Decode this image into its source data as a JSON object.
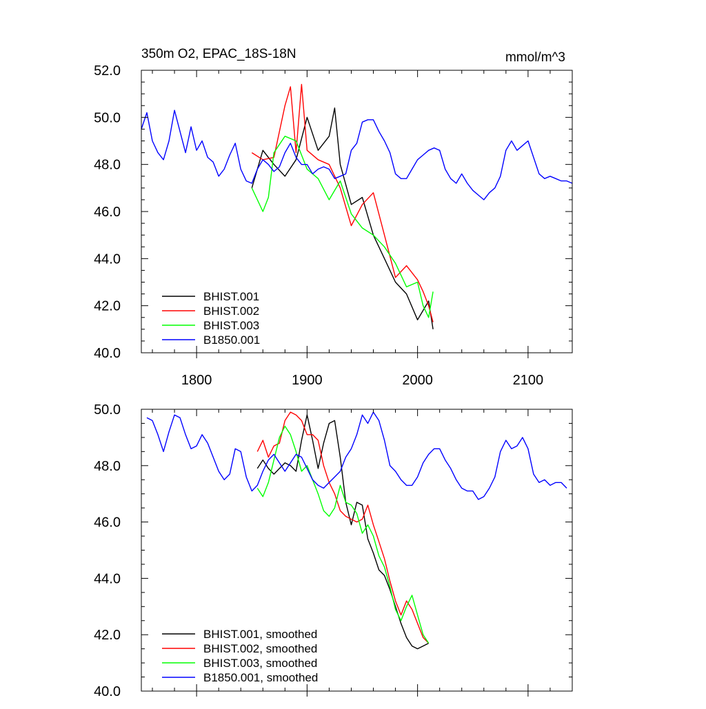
{
  "chart_data": [
    {
      "type": "line",
      "title": "350m O2, EPAC_18S-18N",
      "units": "mmol/m^3",
      "xlim": [
        1750,
        2140
      ],
      "ylim": [
        40,
        52
      ],
      "xticks": [
        1800,
        1900,
        2000,
        2100
      ],
      "xtick_labels": [
        "1800",
        "1900",
        "2000",
        "2100"
      ],
      "yticks": [
        40,
        42,
        44,
        46,
        48,
        50,
        52
      ],
      "ytick_labels": [
        "40.0",
        "42.0",
        "44.0",
        "46.0",
        "48.0",
        "50.0",
        "52.0"
      ],
      "legend_position": "bottom-left",
      "series": [
        {
          "name": "BHIST.001",
          "color": "#000000",
          "x": [
            1850,
            1860,
            1870,
            1880,
            1890,
            1900,
            1910,
            1920,
            1925,
            1930,
            1940,
            1950,
            1960,
            1970,
            1980,
            1990,
            2000,
            2005,
            2010,
            2014
          ],
          "y": [
            47.0,
            48.6,
            48.0,
            47.5,
            48.2,
            50.0,
            48.6,
            49.2,
            50.4,
            48.0,
            46.3,
            46.6,
            45.0,
            44.0,
            43.0,
            42.5,
            41.4,
            41.8,
            42.2,
            41.0
          ]
        },
        {
          "name": "BHIST.002",
          "color": "#ff0000",
          "x": [
            1850,
            1860,
            1870,
            1880,
            1885,
            1890,
            1895,
            1900,
            1910,
            1920,
            1930,
            1940,
            1950,
            1960,
            1970,
            1980,
            1990,
            2000,
            2005,
            2010,
            2014
          ],
          "y": [
            48.5,
            48.2,
            48.3,
            50.5,
            51.3,
            48.5,
            51.4,
            48.6,
            48.2,
            48.0,
            47.0,
            45.4,
            46.3,
            46.8,
            45.0,
            43.2,
            43.7,
            43.1,
            42.6,
            42.0,
            41.3
          ]
        },
        {
          "name": "BHIST.003",
          "color": "#00ff00",
          "x": [
            1850,
            1860,
            1865,
            1870,
            1880,
            1890,
            1900,
            1910,
            1920,
            1930,
            1940,
            1950,
            1960,
            1970,
            1980,
            1990,
            2000,
            2005,
            2010,
            2014
          ],
          "y": [
            47.0,
            46.0,
            46.6,
            48.5,
            49.2,
            49.0,
            47.8,
            47.4,
            46.5,
            47.3,
            45.9,
            45.3,
            45.0,
            44.5,
            43.8,
            42.8,
            43.0,
            42.0,
            41.5,
            42.6
          ]
        },
        {
          "name": "B1850.001",
          "color": "#0000ff",
          "x": [
            1750,
            1755,
            1760,
            1765,
            1770,
            1775,
            1780,
            1785,
            1790,
            1795,
            1800,
            1805,
            1810,
            1815,
            1820,
            1825,
            1830,
            1835,
            1840,
            1845,
            1850,
            1855,
            1860,
            1865,
            1870,
            1875,
            1880,
            1885,
            1890,
            1895,
            1900,
            1905,
            1910,
            1915,
            1920,
            1925,
            1930,
            1935,
            1940,
            1945,
            1950,
            1955,
            1960,
            1965,
            1970,
            1975,
            1980,
            1985,
            1990,
            1995,
            2000,
            2005,
            2010,
            2015,
            2020,
            2025,
            2030,
            2035,
            2040,
            2045,
            2050,
            2055,
            2060,
            2065,
            2070,
            2075,
            2080,
            2085,
            2090,
            2095,
            2100,
            2105,
            2110,
            2115,
            2120,
            2125,
            2130,
            2135,
            2140
          ],
          "y": [
            49.5,
            50.2,
            49.0,
            48.5,
            48.2,
            49.0,
            50.3,
            49.4,
            48.5,
            49.6,
            48.6,
            49.0,
            48.3,
            48.1,
            47.5,
            47.8,
            48.4,
            48.9,
            47.8,
            47.3,
            47.2,
            47.8,
            48.2,
            48.0,
            47.7,
            47.9,
            48.5,
            48.9,
            48.3,
            48.0,
            48.0,
            47.6,
            47.8,
            47.9,
            47.8,
            47.4,
            47.5,
            47.6,
            48.6,
            48.9,
            49.8,
            49.9,
            49.9,
            49.4,
            49.0,
            48.5,
            47.6,
            47.4,
            47.4,
            47.8,
            48.2,
            48.4,
            48.6,
            48.7,
            48.6,
            47.8,
            47.4,
            47.2,
            47.6,
            47.2,
            46.9,
            46.7,
            46.5,
            46.8,
            47.0,
            47.5,
            48.6,
            49.0,
            48.6,
            48.8,
            49.0,
            48.3,
            47.6,
            47.4,
            47.5,
            47.4,
            47.3,
            47.3,
            47.2
          ]
        }
      ]
    },
    {
      "type": "line",
      "title": "",
      "xlim": [
        1750,
        2140
      ],
      "ylim": [
        40,
        50
      ],
      "xticks": [
        1800,
        1900,
        2000,
        2100
      ],
      "yticks": [
        40,
        42,
        44,
        46,
        48,
        50
      ],
      "ytick_labels": [
        "40.0",
        "42.0",
        "44.0",
        "46.0",
        "48.0",
        "50.0"
      ],
      "legend_position": "bottom-left",
      "series": [
        {
          "name": "BHIST.001, smoothed",
          "color": "#000000",
          "x": [
            1855,
            1860,
            1865,
            1870,
            1875,
            1880,
            1885,
            1890,
            1895,
            1900,
            1905,
            1910,
            1915,
            1920,
            1925,
            1930,
            1935,
            1940,
            1945,
            1950,
            1955,
            1960,
            1965,
            1970,
            1975,
            1980,
            1985,
            1990,
            1995,
            2000,
            2005,
            2010
          ],
          "y": [
            47.9,
            48.2,
            47.9,
            47.7,
            47.9,
            48.1,
            48.0,
            47.8,
            48.9,
            49.8,
            48.9,
            47.9,
            48.8,
            49.5,
            49.6,
            48.3,
            46.7,
            45.9,
            46.7,
            46.6,
            45.4,
            44.9,
            44.3,
            44.1,
            43.6,
            43.0,
            42.4,
            41.9,
            41.6,
            41.5,
            41.6,
            41.7
          ]
        },
        {
          "name": "BHIST.002, smoothed",
          "color": "#ff0000",
          "x": [
            1855,
            1860,
            1865,
            1870,
            1875,
            1880,
            1885,
            1890,
            1895,
            1900,
            1905,
            1910,
            1915,
            1920,
            1925,
            1930,
            1935,
            1940,
            1945,
            1950,
            1955,
            1960,
            1965,
            1970,
            1975,
            1980,
            1985,
            1990,
            1995,
            2000,
            2005,
            2010
          ],
          "y": [
            48.5,
            48.9,
            48.3,
            48.7,
            48.8,
            49.6,
            49.9,
            49.8,
            49.6,
            49.1,
            49.1,
            48.9,
            48.0,
            47.4,
            47.0,
            46.4,
            46.2,
            46.1,
            46.0,
            46.1,
            46.6,
            45.9,
            45.3,
            44.7,
            43.9,
            43.2,
            42.7,
            43.2,
            42.9,
            42.4,
            41.9,
            41.7
          ]
        },
        {
          "name": "BHIST.003, smoothed",
          "color": "#00ff00",
          "x": [
            1855,
            1860,
            1865,
            1870,
            1875,
            1880,
            1885,
            1890,
            1895,
            1900,
            1905,
            1910,
            1915,
            1920,
            1925,
            1930,
            1935,
            1940,
            1945,
            1950,
            1955,
            1960,
            1965,
            1970,
            1975,
            1980,
            1985,
            1990,
            1995,
            2000,
            2005,
            2010
          ],
          "y": [
            47.2,
            46.9,
            47.4,
            48.2,
            49.0,
            49.4,
            49.1,
            48.5,
            47.8,
            48.0,
            47.5,
            47.0,
            46.4,
            46.2,
            46.5,
            47.3,
            46.7,
            46.6,
            46.3,
            45.6,
            45.9,
            45.5,
            44.8,
            44.4,
            43.7,
            42.9,
            42.5,
            43.0,
            43.4,
            42.7,
            42.0,
            41.7
          ]
        },
        {
          "name": "B1850.001, smoothed",
          "color": "#0000ff",
          "x": [
            1755,
            1760,
            1765,
            1770,
            1775,
            1780,
            1785,
            1790,
            1795,
            1800,
            1805,
            1810,
            1815,
            1820,
            1825,
            1830,
            1835,
            1840,
            1845,
            1850,
            1855,
            1860,
            1865,
            1870,
            1875,
            1880,
            1885,
            1890,
            1895,
            1900,
            1905,
            1910,
            1915,
            1920,
            1925,
            1930,
            1935,
            1940,
            1945,
            1950,
            1955,
            1960,
            1965,
            1970,
            1975,
            1980,
            1985,
            1990,
            1995,
            2000,
            2005,
            2010,
            2015,
            2020,
            2025,
            2030,
            2035,
            2040,
            2045,
            2050,
            2055,
            2060,
            2065,
            2070,
            2075,
            2080,
            2085,
            2090,
            2095,
            2100,
            2105,
            2110,
            2115,
            2120,
            2125,
            2130,
            2135
          ],
          "y": [
            49.7,
            49.6,
            49.1,
            48.5,
            49.2,
            49.8,
            49.7,
            49.1,
            48.6,
            48.7,
            49.1,
            48.8,
            48.3,
            47.8,
            47.5,
            47.7,
            48.6,
            48.5,
            47.6,
            47.1,
            47.3,
            47.8,
            48.2,
            48.4,
            48.1,
            47.8,
            48.1,
            48.4,
            48.3,
            47.9,
            47.5,
            47.3,
            47.2,
            47.4,
            47.6,
            47.8,
            48.3,
            48.6,
            49.1,
            49.8,
            49.5,
            49.9,
            49.6,
            48.9,
            48.0,
            47.8,
            47.5,
            47.3,
            47.3,
            47.6,
            48.1,
            48.4,
            48.6,
            48.6,
            48.2,
            47.9,
            47.5,
            47.2,
            47.1,
            47.1,
            46.8,
            46.9,
            47.2,
            47.6,
            48.5,
            48.9,
            48.6,
            48.7,
            49.0,
            48.6,
            47.7,
            47.4,
            47.5,
            47.3,
            47.4,
            47.4,
            47.2
          ]
        }
      ]
    }
  ]
}
